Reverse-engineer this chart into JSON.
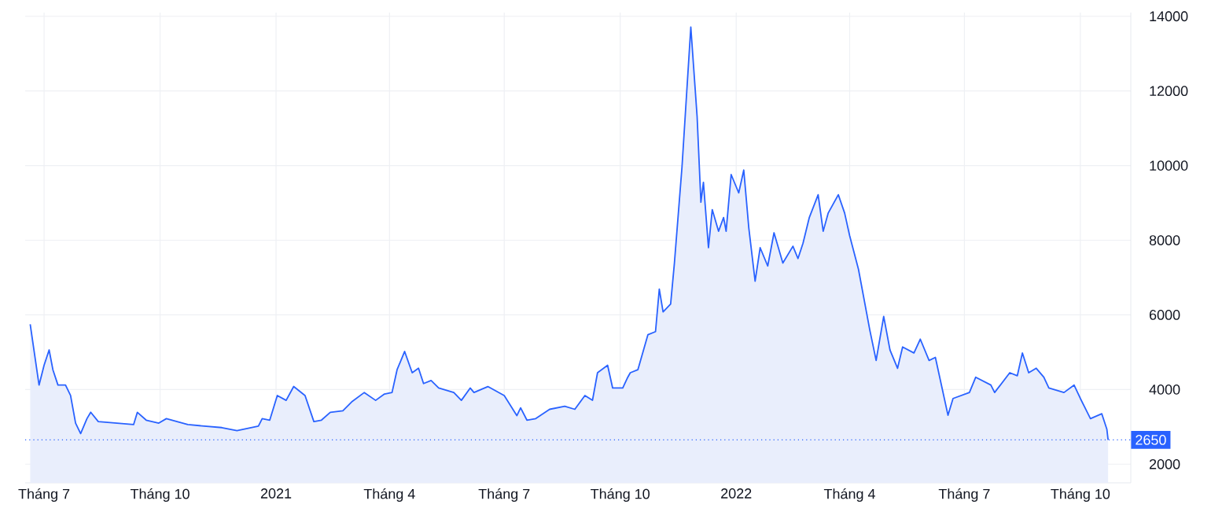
{
  "chart_data": {
    "type": "area",
    "grid": true,
    "color": "#2962ff",
    "x": [
      "2020-06-20",
      "2020-06-27",
      "2020-07-01",
      "2020-07-05",
      "2020-07-08",
      "2020-07-12",
      "2020-07-18",
      "2020-07-22",
      "2020-07-26",
      "2020-07-30",
      "2020-08-04",
      "2020-08-07",
      "2020-08-13",
      "2020-09-10",
      "2020-09-13",
      "2020-09-20",
      "2020-09-30",
      "2020-10-06",
      "2020-10-23",
      "2020-11-19",
      "2020-12-01",
      "2020-12-18",
      "2020-12-21",
      "2020-12-27",
      "2021-01-02",
      "2021-01-09",
      "2021-01-15",
      "2021-01-24",
      "2021-01-31",
      "2021-02-06",
      "2021-02-13",
      "2021-02-23",
      "2021-03-02",
      "2021-03-12",
      "2021-03-21",
      "2021-03-28",
      "2021-04-03",
      "2021-04-07",
      "2021-04-13",
      "2021-04-19",
      "2021-04-24",
      "2021-04-28",
      "2021-05-04",
      "2021-05-10",
      "2021-05-22",
      "2021-05-28",
      "2021-06-04",
      "2021-06-07",
      "2021-06-18",
      "2021-07-01",
      "2021-07-11",
      "2021-07-14",
      "2021-07-19",
      "2021-07-26",
      "2021-08-06",
      "2021-08-18",
      "2021-08-26",
      "2021-09-03",
      "2021-09-09",
      "2021-09-13",
      "2021-09-21",
      "2021-09-25",
      "2021-10-03",
      "2021-10-07",
      "2021-10-09",
      "2021-10-15",
      "2021-10-23",
      "2021-10-29",
      "2021-11-01",
      "2021-11-04",
      "2021-11-10",
      "2021-11-13",
      "2021-11-19",
      "2021-11-26",
      "2021-12-01",
      "2021-12-04",
      "2021-12-06",
      "2021-12-10",
      "2021-12-13",
      "2021-12-18",
      "2021-12-22",
      "2021-12-24",
      "2021-12-28",
      "2022-01-03",
      "2022-01-07",
      "2022-01-11",
      "2022-01-16",
      "2022-01-20",
      "2022-01-26",
      "2022-01-31",
      "2022-02-07",
      "2022-02-15",
      "2022-02-19",
      "2022-02-23",
      "2022-02-28",
      "2022-03-07",
      "2022-03-11",
      "2022-03-15",
      "2022-03-23",
      "2022-03-28",
      "2022-04-01",
      "2022-04-08",
      "2022-04-17",
      "2022-04-22",
      "2022-04-28",
      "2022-05-03",
      "2022-05-09",
      "2022-05-13",
      "2022-05-22",
      "2022-05-27",
      "2022-06-03",
      "2022-06-08",
      "2022-06-18",
      "2022-06-22",
      "2022-07-05",
      "2022-07-10",
      "2022-07-22",
      "2022-07-25",
      "2022-08-06",
      "2022-08-12",
      "2022-08-16",
      "2022-08-21",
      "2022-08-27",
      "2022-09-02",
      "2022-09-06",
      "2022-09-18",
      "2022-09-26",
      "2022-10-01",
      "2022-10-09",
      "2022-10-18",
      "2022-10-22",
      "2022-10-23"
    ],
    "values": [
      5750,
      4120,
      4650,
      5060,
      4530,
      4120,
      4120,
      3840,
      3100,
      2820,
      3220,
      3390,
      3140,
      3060,
      3390,
      3180,
      3100,
      3220,
      3060,
      2980,
      2900,
      3020,
      3220,
      3180,
      3840,
      3710,
      4080,
      3840,
      3140,
      3180,
      3390,
      3430,
      3670,
      3920,
      3710,
      3880,
      3920,
      4530,
      5020,
      4450,
      4570,
      4160,
      4240,
      4040,
      3920,
      3710,
      4040,
      3920,
      4080,
      3840,
      3300,
      3510,
      3180,
      3220,
      3470,
      3550,
      3470,
      3840,
      3710,
      4450,
      4650,
      4040,
      4040,
      4330,
      4450,
      4530,
      5470,
      5550,
      6690,
      6080,
      6290,
      7390,
      9960,
      13710,
      11310,
      9020,
      9550,
      7800,
      8820,
      8240,
      8610,
      8240,
      9760,
      9270,
      9880,
      8330,
      6900,
      7800,
      7310,
      8200,
      7390,
      7840,
      7510,
      7920,
      8610,
      9220,
      8240,
      8730,
      9220,
      8730,
      8120,
      7220,
      5590,
      4780,
      5960,
      5060,
      4570,
      5140,
      4980,
      5350,
      4780,
      4860,
      3310,
      3760,
      3920,
      4330,
      4120,
      3920,
      4450,
      4370,
      4980,
      4450,
      4570,
      4330,
      4040,
      3920,
      4120,
      3760,
      3220,
      3350,
      2940,
      2650
    ],
    "xlim": [
      "2020-06-16",
      "2022-11-10"
    ],
    "xticks": [
      {
        "value": "2020-07-01",
        "label": "Tháng 7"
      },
      {
        "value": "2020-10-01",
        "label": "Tháng 10"
      },
      {
        "value": "2021-01-01",
        "label": "2021"
      },
      {
        "value": "2021-04-01",
        "label": "Tháng 4"
      },
      {
        "value": "2021-07-01",
        "label": "Tháng 7"
      },
      {
        "value": "2021-10-01",
        "label": "Tháng 10"
      },
      {
        "value": "2022-01-01",
        "label": "2022"
      },
      {
        "value": "2022-04-01",
        "label": "Tháng 4"
      },
      {
        "value": "2022-07-01",
        "label": "Tháng 7"
      },
      {
        "value": "2022-10-01",
        "label": "Tháng 10"
      }
    ],
    "ylim": [
      1500,
      14100
    ],
    "yticks": [
      2000,
      4000,
      6000,
      8000,
      10000,
      12000,
      14000
    ],
    "ref_lines": [
      {
        "axis": "y",
        "value": 2650,
        "label": "2650",
        "color": "#2962ff",
        "line_style": "dotted"
      }
    ]
  }
}
